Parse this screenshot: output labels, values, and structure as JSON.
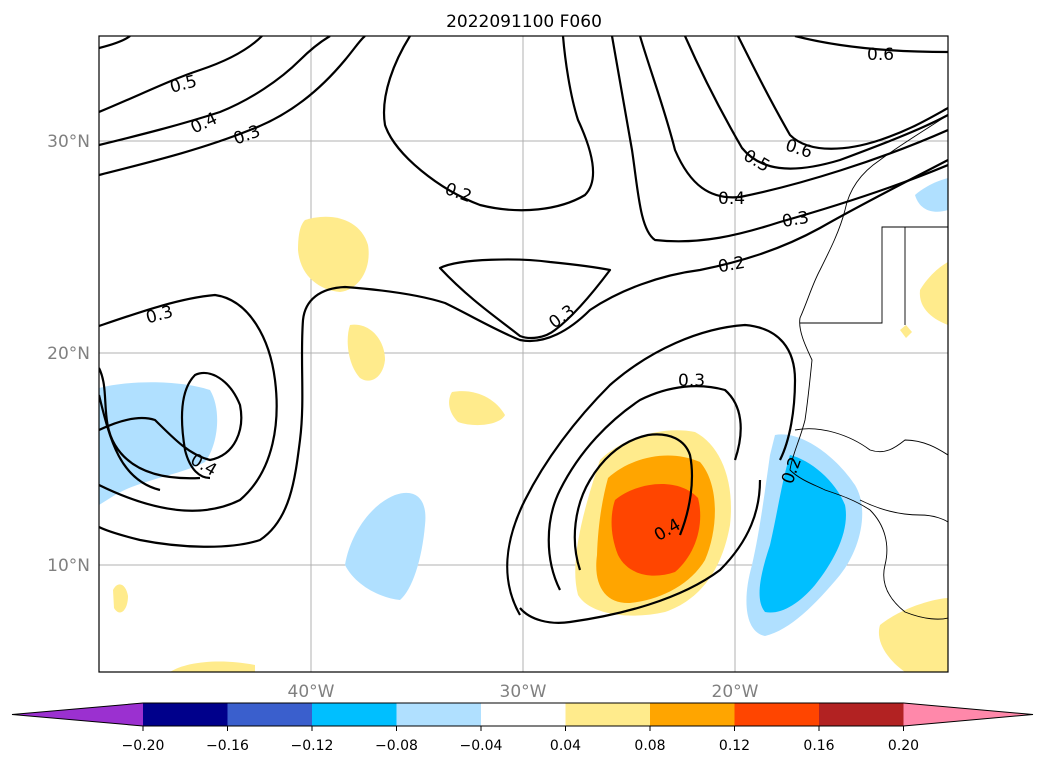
{
  "title": "2022091100 F060",
  "map": {
    "lat_labels": [
      "30°N",
      "20°N",
      "10°N"
    ],
    "lon_labels": [
      "40°W",
      "30°W",
      "20°W"
    ],
    "contour_labels": [
      "0.5",
      "0.4",
      "0.3",
      "0.2",
      "0.6",
      "0.6",
      "0.5",
      "0.4",
      "0.3",
      "0.2",
      "0.3",
      "0.3",
      "0.3",
      "0.4",
      "0.2",
      "0.4"
    ],
    "contour_color": "#000000"
  },
  "colorbar": {
    "ticks": [
      "−0.20",
      "−0.16",
      "−0.12",
      "−0.08",
      "−0.04",
      "0.04",
      "0.08",
      "0.12",
      "0.16",
      "0.20"
    ],
    "colors": [
      "#9b30d0",
      "#00008b",
      "#3a5fcd",
      "#00bfff",
      "#b0e0ff",
      "#ffffff",
      "#ffeb8c",
      "#ffa500",
      "#ff4500",
      "#b22222",
      "#ff88aa"
    ]
  }
}
